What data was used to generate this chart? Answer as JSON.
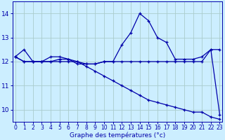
{
  "line1": {
    "x": [
      0,
      1,
      2,
      3,
      4,
      5,
      6,
      7,
      8,
      9,
      10,
      11,
      12,
      13,
      14,
      15,
      16,
      17,
      18,
      19,
      20,
      21,
      22,
      23
    ],
    "y": [
      12.2,
      12.5,
      12.0,
      12.0,
      12.2,
      12.2,
      12.1,
      12.0,
      11.9,
      11.9,
      12.0,
      12.0,
      12.0,
      12.0,
      12.0,
      12.0,
      12.0,
      12.0,
      12.0,
      12.0,
      12.0,
      12.0,
      12.5,
      12.5
    ]
  },
  "line2": {
    "x": [
      0,
      1,
      2,
      3,
      4,
      5,
      6,
      7,
      8,
      9,
      10,
      11,
      12,
      13,
      14,
      15,
      16,
      17,
      18,
      19,
      20,
      21,
      22,
      23
    ],
    "y": [
      12.2,
      12.0,
      12.0,
      12.0,
      12.0,
      12.1,
      12.1,
      11.9,
      11.9,
      11.9,
      12.0,
      12.0,
      12.7,
      13.2,
      14.0,
      13.7,
      13.0,
      12.8,
      12.1,
      12.1,
      12.1,
      12.2,
      12.5,
      9.8
    ]
  },
  "line3": {
    "x": [
      0,
      1,
      2,
      3,
      4,
      5,
      6,
      7,
      8,
      9,
      10,
      11,
      12,
      13,
      14,
      15,
      16,
      17,
      18,
      19,
      20,
      21,
      22,
      23
    ],
    "y": [
      12.2,
      12.0,
      12.0,
      12.0,
      12.0,
      12.0,
      12.0,
      12.0,
      11.8,
      11.6,
      11.4,
      11.2,
      11.0,
      10.8,
      10.6,
      10.4,
      10.3,
      10.2,
      10.1,
      10.0,
      9.9,
      9.9,
      9.7,
      9.6
    ]
  },
  "xlabel": "Graphe des températures (°c)",
  "yticks": [
    10,
    11,
    12,
    13,
    14
  ],
  "xticks": [
    0,
    1,
    2,
    3,
    4,
    5,
    6,
    7,
    8,
    9,
    10,
    11,
    12,
    13,
    14,
    15,
    16,
    17,
    18,
    19,
    20,
    21,
    22,
    23
  ],
  "xlim": [
    -0.3,
    23.3
  ],
  "ylim": [
    9.5,
    14.5
  ],
  "bg_color": "#cceeff",
  "grid_color": "#aacccc",
  "line_color": "#0000aa",
  "tick_fontsize": 5.5,
  "xlabel_fontsize": 6.5,
  "ytick_fontsize": 6.5
}
